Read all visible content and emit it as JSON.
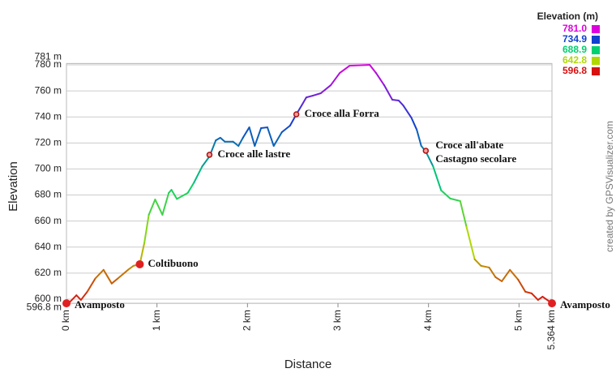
{
  "chart_data": {
    "type": "line",
    "x_label": "Distance",
    "y_label": "Elevation",
    "credit": "created by GPSVisualizer.com",
    "legend_title": "Elevation (m)",
    "legend": [
      {
        "value": {
          "value": 781,
          "label": "781.0"
        },
        "color": "#dd00dd"
      },
      {
        "value": 734.9,
        "color": "#1040d0"
      },
      {
        "value": 688.9,
        "color": "#00d070"
      },
      {
        "value": 642.8,
        "color": "#b0d800"
      },
      {
        "value": 596.8,
        "color": "#d81010"
      }
    ],
    "xlim": [
      0,
      5.364
    ],
    "ylim": [
      596.8,
      781
    ],
    "xticks": [
      {
        "value": 0,
        "label": "0 km"
      },
      {
        "value": 1,
        "label": "1 km"
      },
      {
        "value": 2,
        "label": "2 km"
      },
      {
        "value": 3,
        "label": "3 km"
      },
      {
        "value": 4,
        "label": "4 km"
      },
      {
        "value": 5,
        "label": "5 km"
      },
      {
        "value": 5.364,
        "label": "5.364 km"
      }
    ],
    "yticks": [
      {
        "value": 596.8,
        "label": "596.8 m"
      },
      {
        "value": 600,
        "label": "600 m"
      },
      {
        "value": 620,
        "label": "620 m"
      },
      {
        "value": 640,
        "label": "640 m"
      },
      {
        "value": 660,
        "label": "660 m"
      },
      {
        "value": 680,
        "label": "680 m"
      },
      {
        "value": 700,
        "label": "700 m"
      },
      {
        "value": 720,
        "label": "720 m"
      },
      {
        "value": 740,
        "label": "740 m"
      },
      {
        "value": 760,
        "label": "760 m"
      },
      {
        "value": 780,
        "label": "780 m"
      },
      {
        "value": 781,
        "label": "781 m"
      }
    ],
    "grid": true,
    "series": [
      {
        "name": "Elevation",
        "x": [
          0,
          0.04,
          0.11,
          0.16,
          0.23,
          0.32,
          0.41,
          0.5,
          0.57,
          0.68,
          0.74,
          0.81,
          0.86,
          0.91,
          0.98,
          1.06,
          1.13,
          1.16,
          1.22,
          1.34,
          1.41,
          1.5,
          1.58,
          1.65,
          1.7,
          1.75,
          1.84,
          1.9,
          1.95,
          2.02,
          2.08,
          2.15,
          2.22,
          2.29,
          2.38,
          2.47,
          2.54,
          2.6,
          2.65,
          2.72,
          2.81,
          2.92,
          3.02,
          3.13,
          3.35,
          3.42,
          3.51,
          3.6,
          3.67,
          3.72,
          3.81,
          3.87,
          3.92,
          3.97,
          4.05,
          4.14,
          4.24,
          4.35,
          4.42,
          4.51,
          4.58,
          4.67,
          4.74,
          4.81,
          4.9,
          4.99,
          5.07,
          5.14,
          5.21,
          5.26,
          5.364
        ],
        "values": [
          596.8,
          598,
          603,
          599.4,
          605.7,
          616,
          622.5,
          612,
          616,
          622.5,
          625.6,
          626.8,
          643,
          664.8,
          676.6,
          664.8,
          681.6,
          684,
          677,
          681.6,
          689.7,
          702,
          709.6,
          722,
          724,
          721,
          721,
          717.7,
          724,
          732,
          717.7,
          731.4,
          732,
          717.7,
          728.3,
          733.3,
          742,
          749,
          755,
          756.3,
          758.2,
          764.4,
          773.8,
          779.4,
          780,
          773.8,
          764.4,
          753.2,
          752.6,
          748.9,
          739.5,
          730.2,
          717.7,
          713.4,
          702.2,
          683.5,
          677.3,
          675.4,
          655.5,
          630.6,
          625.6,
          624.3,
          616.9,
          613.7,
          622.5,
          615,
          605.7,
          604.4,
          599.4,
          601.9,
          596.8
        ]
      }
    ],
    "waypoints": [
      {
        "name": "Avamposto",
        "x": 0,
        "y": 596.8
      },
      {
        "name": "Coltibuono",
        "x": 0.81,
        "y": 626.8
      },
      {
        "name": "Croce alle lastre",
        "x": 1.58,
        "y": 710.9
      },
      {
        "name": "Croce alla Forra",
        "x": 2.54,
        "y": 742
      },
      {
        "name": [
          "Croce all'abate",
          "Castagno secolare"
        ],
        "x": 3.97,
        "y": 714
      },
      {
        "name": "Avamposto",
        "x": 5.364,
        "y": 596.8
      }
    ]
  }
}
